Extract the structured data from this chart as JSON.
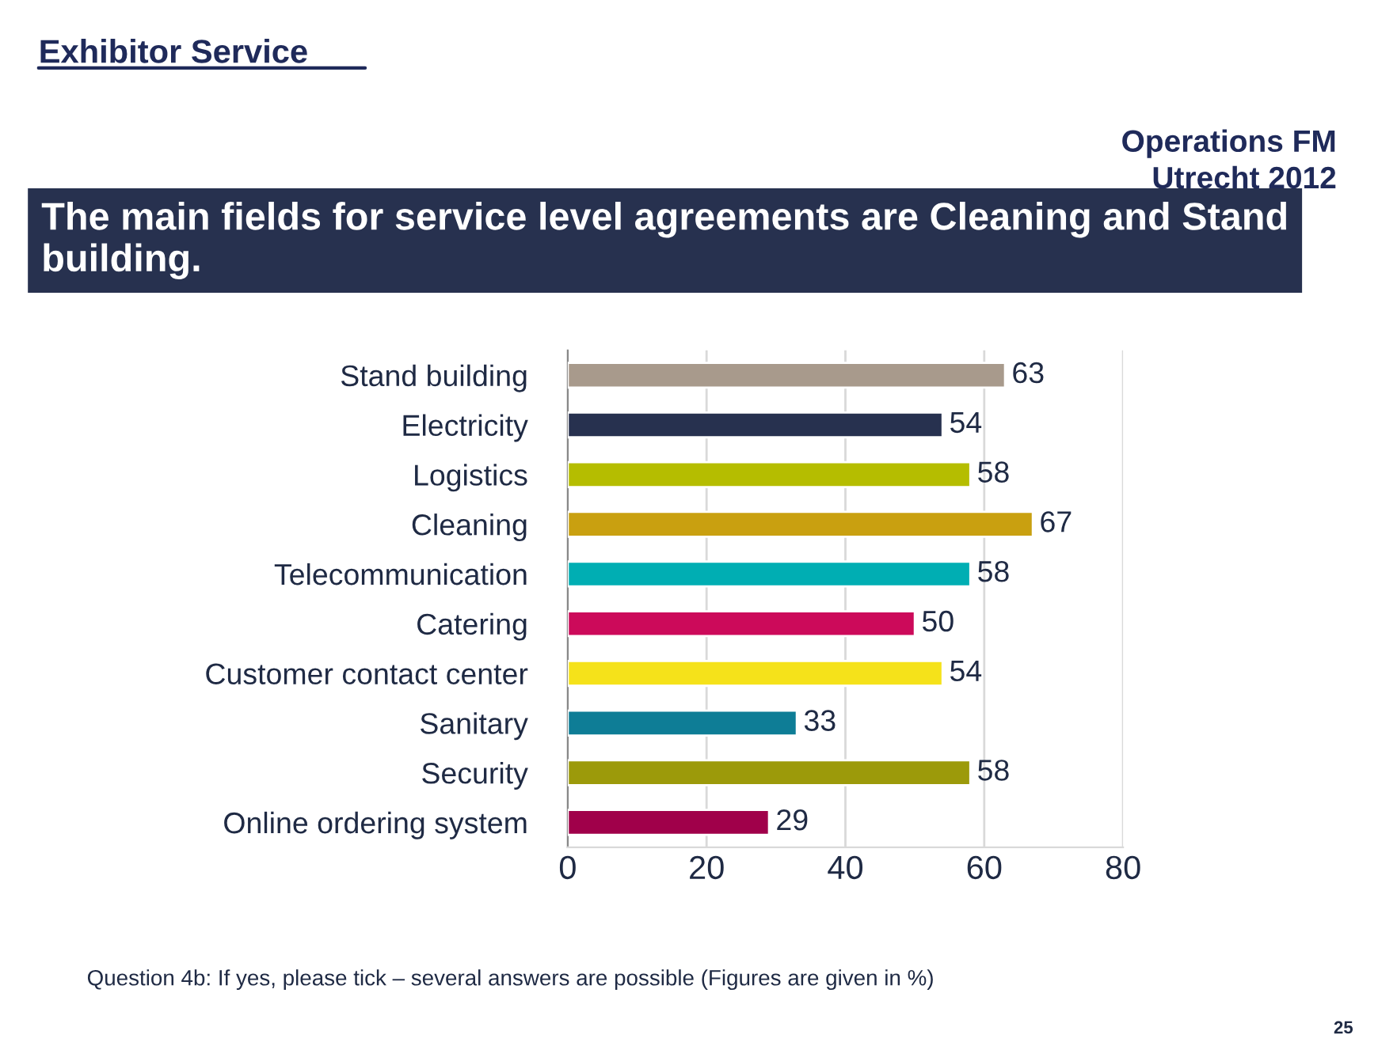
{
  "chart_data": {
    "type": "bar",
    "orientation": "horizontal",
    "title": "Exhibitor Service",
    "subtitle": "The main fields for service level agreements are Cleaning and Stand building.",
    "categories": [
      "Stand building",
      "Electricity",
      "Logistics",
      "Cleaning",
      "Telecommunication",
      "Catering",
      "Customer contact center",
      "Sanitary",
      "Security",
      "Online ordering system"
    ],
    "values": [
      63,
      54,
      58,
      67,
      58,
      50,
      54,
      33,
      58,
      29
    ],
    "colors": [
      "#a89a8c",
      "#27314f",
      "#b5bd00",
      "#c9a010",
      "#00aeb3",
      "#cc0a5a",
      "#f5e21a",
      "#0e7d96",
      "#9c9a0a",
      "#a0004a"
    ],
    "xlim": [
      0,
      80
    ],
    "xticks": [
      0,
      20,
      40,
      60,
      80
    ],
    "grid": "x",
    "data_labels": true,
    "annotations": [
      "Operations FM",
      "Utrecht 2012",
      "Question 4b: If yes, please tick – several answers are possible (Figures are given in %)",
      "25"
    ]
  }
}
